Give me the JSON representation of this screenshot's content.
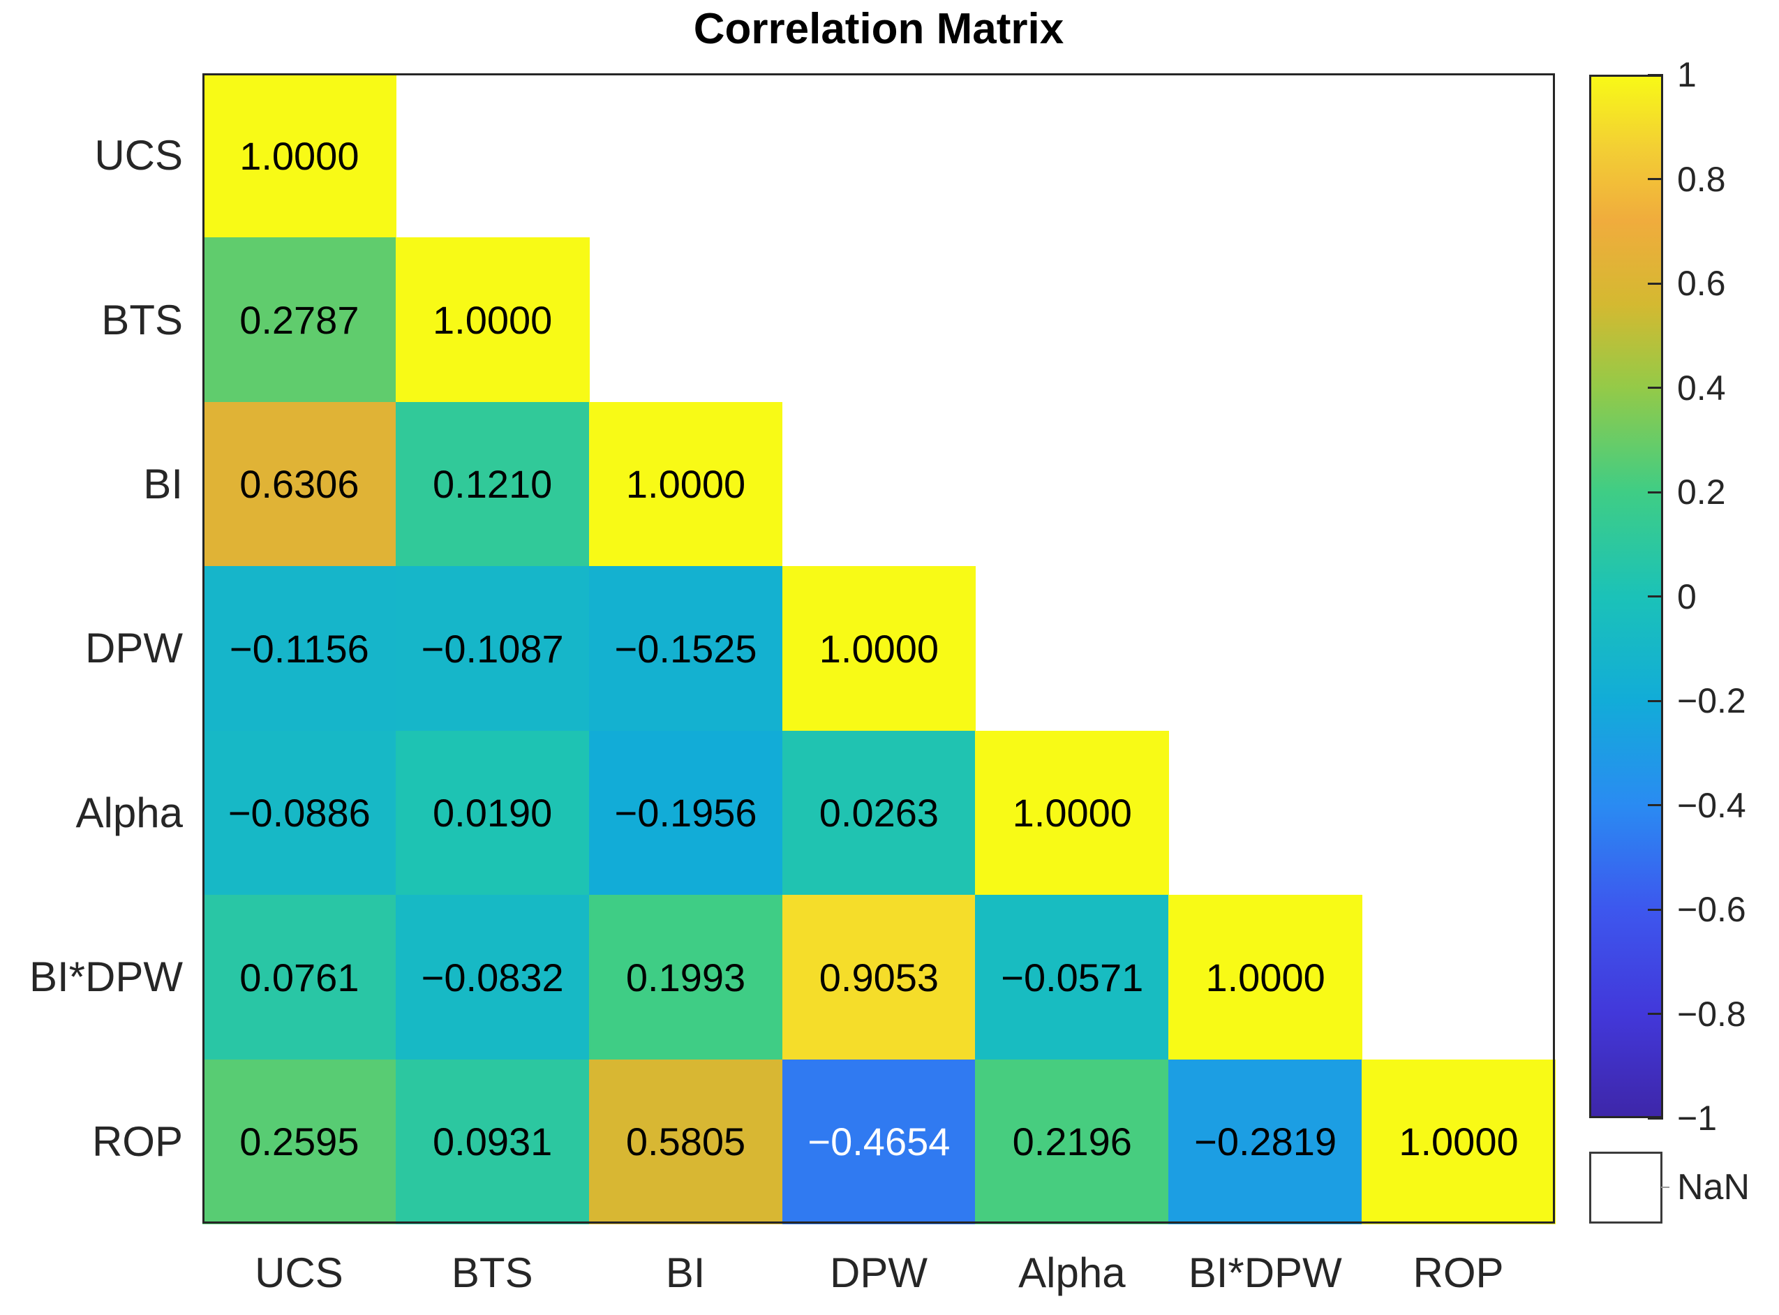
{
  "figure": {
    "background": "#ffffff",
    "title_color": "#000000",
    "axis_text_color": "#262626",
    "border_color": "#262626"
  },
  "chart_data": {
    "type": "heatmap",
    "title": "Correlation Matrix",
    "variables": [
      "UCS",
      "BTS",
      "BI",
      "DPW",
      "Alpha",
      "BI*DPW",
      "ROP"
    ],
    "lower_triangle": [
      [
        1.0
      ],
      [
        0.2787,
        1.0
      ],
      [
        0.6306,
        0.121,
        1.0
      ],
      [
        -0.1156,
        -0.1087,
        -0.1525,
        1.0
      ],
      [
        -0.0886,
        0.019,
        -0.1956,
        0.0263,
        1.0
      ],
      [
        0.0761,
        -0.0832,
        0.1993,
        0.9053,
        -0.0571,
        1.0
      ],
      [
        0.2595,
        0.0931,
        0.5805,
        -0.4654,
        0.2196,
        -0.2819,
        1.0
      ]
    ],
    "value_decimals": 4,
    "upper_triangle_blank": true,
    "legend_position": "right-colorbar",
    "grid": false,
    "colorbar": {
      "min": -1,
      "max": 1,
      "tick_values": [
        1,
        0.8,
        0.6,
        0.4,
        0.2,
        0,
        -0.2,
        -0.4,
        -0.6,
        -0.8,
        -1
      ],
      "nan_label": "NaN",
      "nan_color": "#ffffff"
    },
    "colormap": {
      "name": "parula-like",
      "stops": [
        [
          0.0,
          "#3e26a8"
        ],
        [
          0.1,
          "#4238da"
        ],
        [
          0.2,
          "#3d57ee"
        ],
        [
          0.3,
          "#2a8bf2"
        ],
        [
          0.4,
          "#12acd8"
        ],
        [
          0.5,
          "#1bc2b8"
        ],
        [
          0.6,
          "#3fcd85"
        ],
        [
          0.7,
          "#94ca48"
        ],
        [
          0.78,
          "#d4b931"
        ],
        [
          0.86,
          "#f0ac3d"
        ],
        [
          0.93,
          "#f3cf34"
        ],
        [
          1.0,
          "#f8fa16"
        ]
      ]
    }
  }
}
